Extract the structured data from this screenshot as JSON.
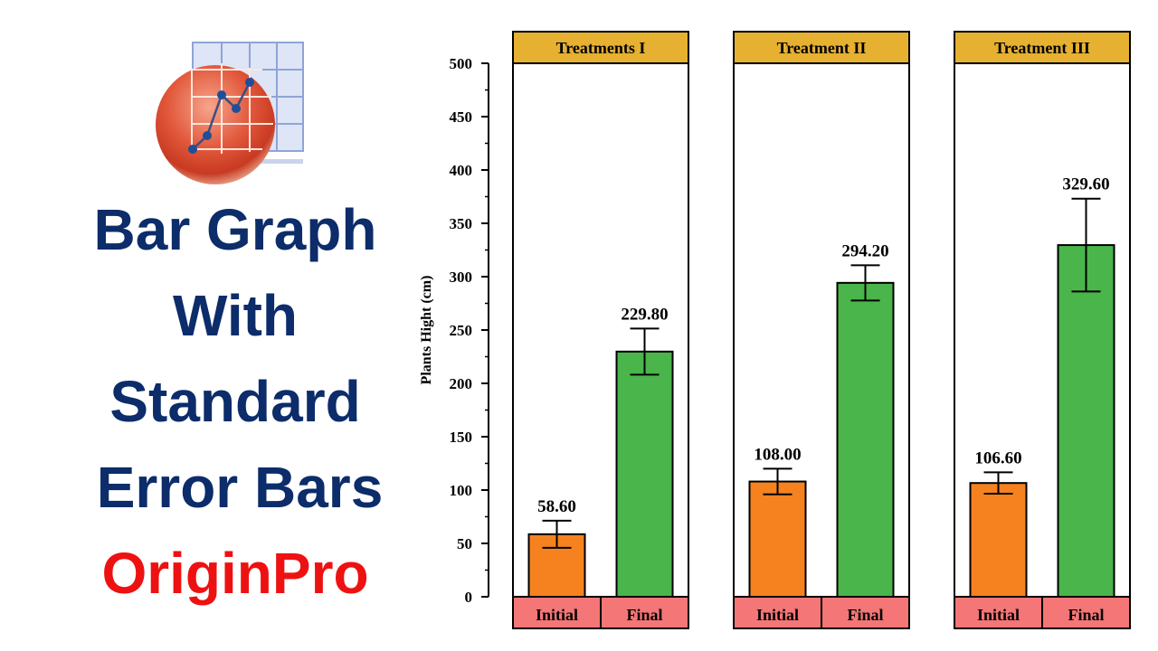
{
  "title_lines": [
    "Bar Graph",
    "With",
    "Standard",
    "Error Bars"
  ],
  "brand": "OriginPro",
  "colors": {
    "title": "#0c2c6a",
    "brand": "#ee1111",
    "initial": "#f5821f",
    "final": "#4ab54a",
    "panel_header": "#e6b030",
    "category_band": "#f47676"
  },
  "logo": {
    "icon": "originpro-logo-icon"
  },
  "chart_data": {
    "type": "bar",
    "ylabel": "Plants Hight (cm)",
    "ylim": [
      0,
      500
    ],
    "yticks": [
      0,
      50,
      100,
      150,
      200,
      250,
      300,
      350,
      400,
      450,
      500
    ],
    "grid": false,
    "categories": [
      "Initial",
      "Final"
    ],
    "panels": [
      {
        "title": "Treatments I",
        "values": [
          58.6,
          229.8
        ],
        "labels": [
          "58.60",
          "229.80"
        ],
        "errors": [
          12.7,
          21.6
        ]
      },
      {
        "title": "Treatment II",
        "values": [
          108.0,
          294.2
        ],
        "labels": [
          "108.00",
          "294.20"
        ],
        "errors": [
          12,
          16.5
        ]
      },
      {
        "title": "Treatment III",
        "values": [
          106.6,
          329.6
        ],
        "labels": [
          "106.60",
          "329.60"
        ],
        "errors": [
          10,
          43.5
        ]
      }
    ]
  }
}
